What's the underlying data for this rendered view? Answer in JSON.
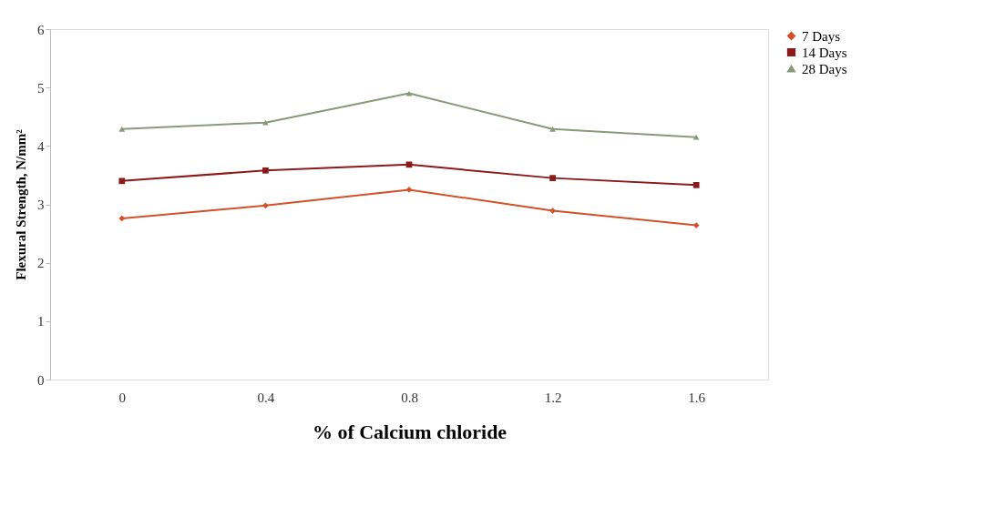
{
  "chart_data": {
    "type": "line",
    "xlabel": "% of Calcium chloride",
    "ylabel": "Flexural Strength, N/mm²",
    "categories": [
      "0",
      "0.4",
      "0.8",
      "1.2",
      "1.6"
    ],
    "series": [
      {
        "name": "7 Days",
        "color": "#d2502a",
        "marker": "diamond",
        "values": [
          2.76,
          2.98,
          3.25,
          2.89,
          2.64
        ]
      },
      {
        "name": "14 Days",
        "color": "#8b1a1a",
        "marker": "square",
        "values": [
          3.4,
          3.58,
          3.68,
          3.45,
          3.33
        ]
      },
      {
        "name": "28 Days",
        "color": "#8a9a78",
        "marker": "triangle",
        "values": [
          4.29,
          4.4,
          4.9,
          4.29,
          4.15
        ]
      }
    ],
    "ylim": [
      0,
      6
    ],
    "yticks": [
      0,
      1,
      2,
      3,
      4,
      5,
      6
    ],
    "grid": false,
    "legend": "right",
    "line_style": "solid"
  }
}
